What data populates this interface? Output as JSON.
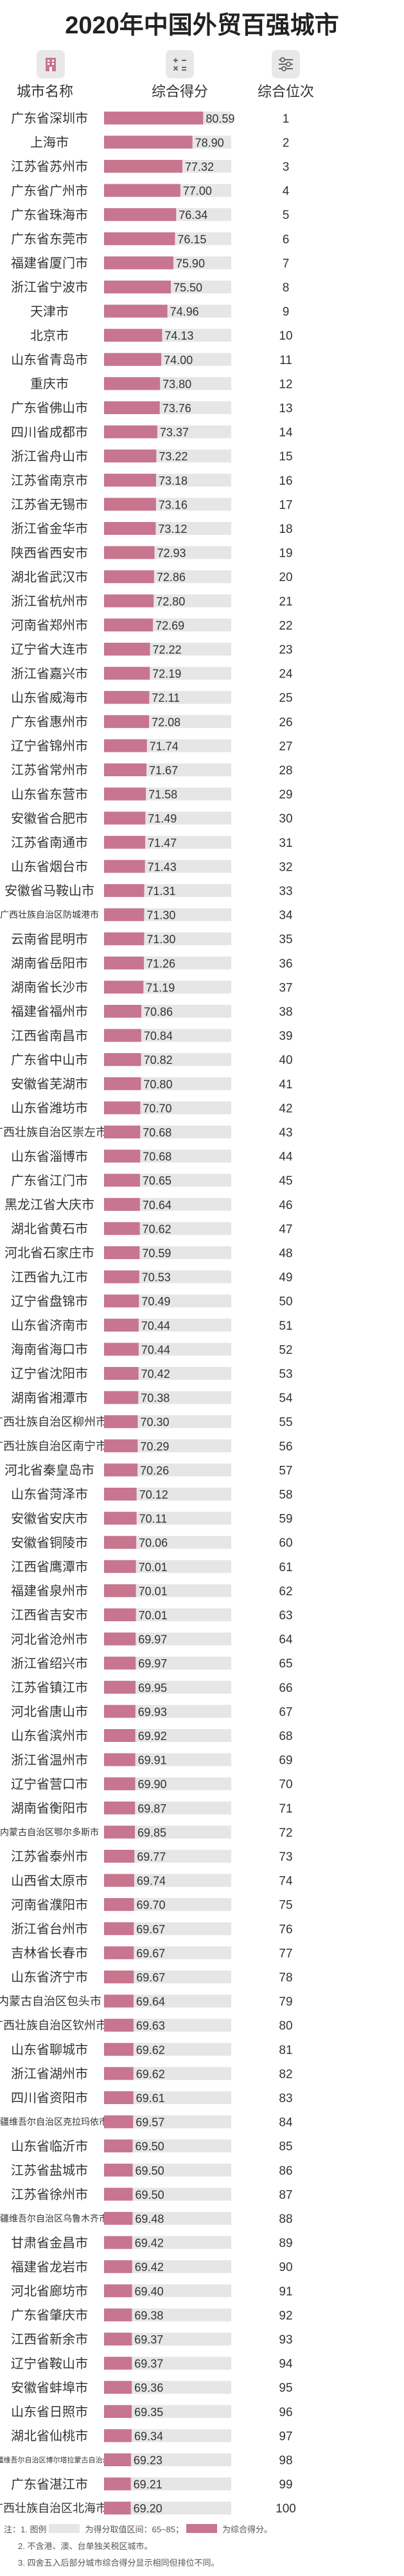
{
  "title": "2020年中国外贸百强城市",
  "headers": {
    "city": "城市名称",
    "score": "综合得分",
    "rank": "综合位次"
  },
  "icons": [
    "building-icon",
    "calculator-icon",
    "sliders-icon"
  ],
  "colors": {
    "bar": "#c8758f",
    "bar_bg": "#e6e6e6",
    "header_bg": "#e8e8e8"
  },
  "chart_data": {
    "type": "bar",
    "orientation": "horizontal",
    "title": "2020年中国外贸百强城市",
    "xlabel": "综合得分",
    "ylabel": "城市名称",
    "xlim": [
      65,
      85
    ],
    "categories": [
      "广东省深圳市",
      "上海市",
      "江苏省苏州市",
      "广东省广州市",
      "广东省珠海市",
      "广东省东莞市",
      "福建省厦门市",
      "浙江省宁波市",
      "天津市",
      "北京市",
      "山东省青岛市",
      "重庆市",
      "广东省佛山市",
      "四川省成都市",
      "浙江省舟山市",
      "江苏省南京市",
      "江苏省无锡市",
      "浙江省金华市",
      "陕西省西安市",
      "湖北省武汉市",
      "浙江省杭州市",
      "河南省郑州市",
      "辽宁省大连市",
      "浙江省嘉兴市",
      "山东省威海市",
      "广东省惠州市",
      "辽宁省锦州市",
      "江苏省常州市",
      "山东省东营市",
      "安徽省合肥市",
      "江苏省南通市",
      "山东省烟台市",
      "安徽省马鞍山市",
      "广西壮族自治区防城港市",
      "云南省昆明市",
      "湖南省岳阳市",
      "湖南省长沙市",
      "福建省福州市",
      "江西省南昌市",
      "广东省中山市",
      "安徽省芜湖市",
      "山东省潍坊市",
      "广西壮族自治区崇左市",
      "山东省淄博市",
      "广东省江门市",
      "黑龙江省大庆市",
      "湖北省黄石市",
      "河北省石家庄市",
      "江西省九江市",
      "辽宁省盘锦市",
      "山东省济南市",
      "海南省海口市",
      "辽宁省沈阳市",
      "湖南省湘潭市",
      "广西壮族自治区柳州市",
      "广西壮族自治区南宁市",
      "河北省秦皇岛市",
      "山东省菏泽市",
      "安徽省安庆市",
      "安徽省铜陵市",
      "江西省鹰潭市",
      "福建省泉州市",
      "江西省吉安市",
      "河北省沧州市",
      "浙江省绍兴市",
      "江苏省镇江市",
      "河北省唐山市",
      "山东省滨州市",
      "浙江省温州市",
      "辽宁省营口市",
      "湖南省衡阳市",
      "内蒙古自治区鄂尔多斯市",
      "江苏省泰州市",
      "山西省太原市",
      "河南省濮阳市",
      "浙江省台州市",
      "吉林省长春市",
      "山东省济宁市",
      "内蒙古自治区包头市",
      "广西壮族自治区钦州市",
      "山东省聊城市",
      "浙江省湖州市",
      "四川省资阳市",
      "新疆维吾尔自治区克拉玛依市",
      "山东省临沂市",
      "江苏省盐城市",
      "江苏省徐州市",
      "新疆维吾尔自治区乌鲁木齐市",
      "甘肃省金昌市",
      "福建省龙岩市",
      "河北省廊坊市",
      "广东省肇庆市",
      "江西省新余市",
      "辽宁省鞍山市",
      "安徽省蚌埠市",
      "山东省日照市",
      "湖北省仙桃市",
      "新疆维吾尔自治区博尔塔拉蒙古自治州",
      "广东省湛江市",
      "广西壮族自治区北海市"
    ],
    "values": [
      80.59,
      78.9,
      77.32,
      77.0,
      76.34,
      76.15,
      75.9,
      75.5,
      74.96,
      74.13,
      74.0,
      73.8,
      73.76,
      73.37,
      73.22,
      73.18,
      73.16,
      73.12,
      72.93,
      72.86,
      72.8,
      72.69,
      72.22,
      72.19,
      72.11,
      72.08,
      71.74,
      71.67,
      71.58,
      71.49,
      71.47,
      71.43,
      71.31,
      71.3,
      71.3,
      71.26,
      71.19,
      70.86,
      70.84,
      70.82,
      70.8,
      70.7,
      70.68,
      70.68,
      70.65,
      70.64,
      70.62,
      70.59,
      70.53,
      70.49,
      70.44,
      70.44,
      70.42,
      70.38,
      70.3,
      70.29,
      70.26,
      70.12,
      70.11,
      70.06,
      70.01,
      70.01,
      70.01,
      69.97,
      69.97,
      69.95,
      69.93,
      69.92,
      69.91,
      69.9,
      69.87,
      69.85,
      69.77,
      69.74,
      69.7,
      69.67,
      69.67,
      69.67,
      69.64,
      69.63,
      69.62,
      69.62,
      69.61,
      69.57,
      69.5,
      69.5,
      69.5,
      69.48,
      69.42,
      69.42,
      69.4,
      69.38,
      69.37,
      69.37,
      69.36,
      69.35,
      69.34,
      69.23,
      69.21,
      69.2
    ],
    "ranks": [
      "1",
      "2",
      "3",
      "4",
      "5",
      "6",
      "7",
      "8",
      "9",
      "10",
      "11",
      "12",
      "13",
      "14",
      "15",
      "16",
      "17",
      "18",
      "19",
      "20",
      "21",
      "22",
      "23",
      "24",
      "25",
      "26",
      "27",
      "28",
      "29",
      "30",
      "31",
      "32",
      "33",
      "34",
      "35",
      "36",
      "37",
      "38",
      "39",
      "40",
      "41",
      "42",
      "43",
      "44",
      "45",
      "46",
      "47",
      "48",
      "49",
      "50",
      "51",
      "52",
      "53",
      "54",
      "55",
      "56",
      "57",
      "58",
      "59",
      "60",
      "61",
      "62",
      "63",
      "64",
      "65",
      "66",
      "67",
      "68",
      "69",
      "70",
      "71",
      "72",
      "73",
      "74",
      "75",
      "76",
      "77",
      "78",
      "79",
      "80",
      "81",
      "82",
      "83",
      "84",
      "85",
      "86",
      "87",
      "88",
      "89",
      "90",
      "91",
      "92",
      "93",
      "94",
      "95",
      "96",
      "97",
      "98",
      "99",
      "100"
    ]
  },
  "notes": {
    "line1_prefix": "注：1. 图例",
    "line1_mid": "为得分取值区间：65~85；",
    "line1_end": "为综合得分。",
    "line2": "2. 不含港、澳、台单独关税区城市。",
    "line3": "3. 四舍五入后部分城市综合得分显示相同但排位不同。"
  }
}
